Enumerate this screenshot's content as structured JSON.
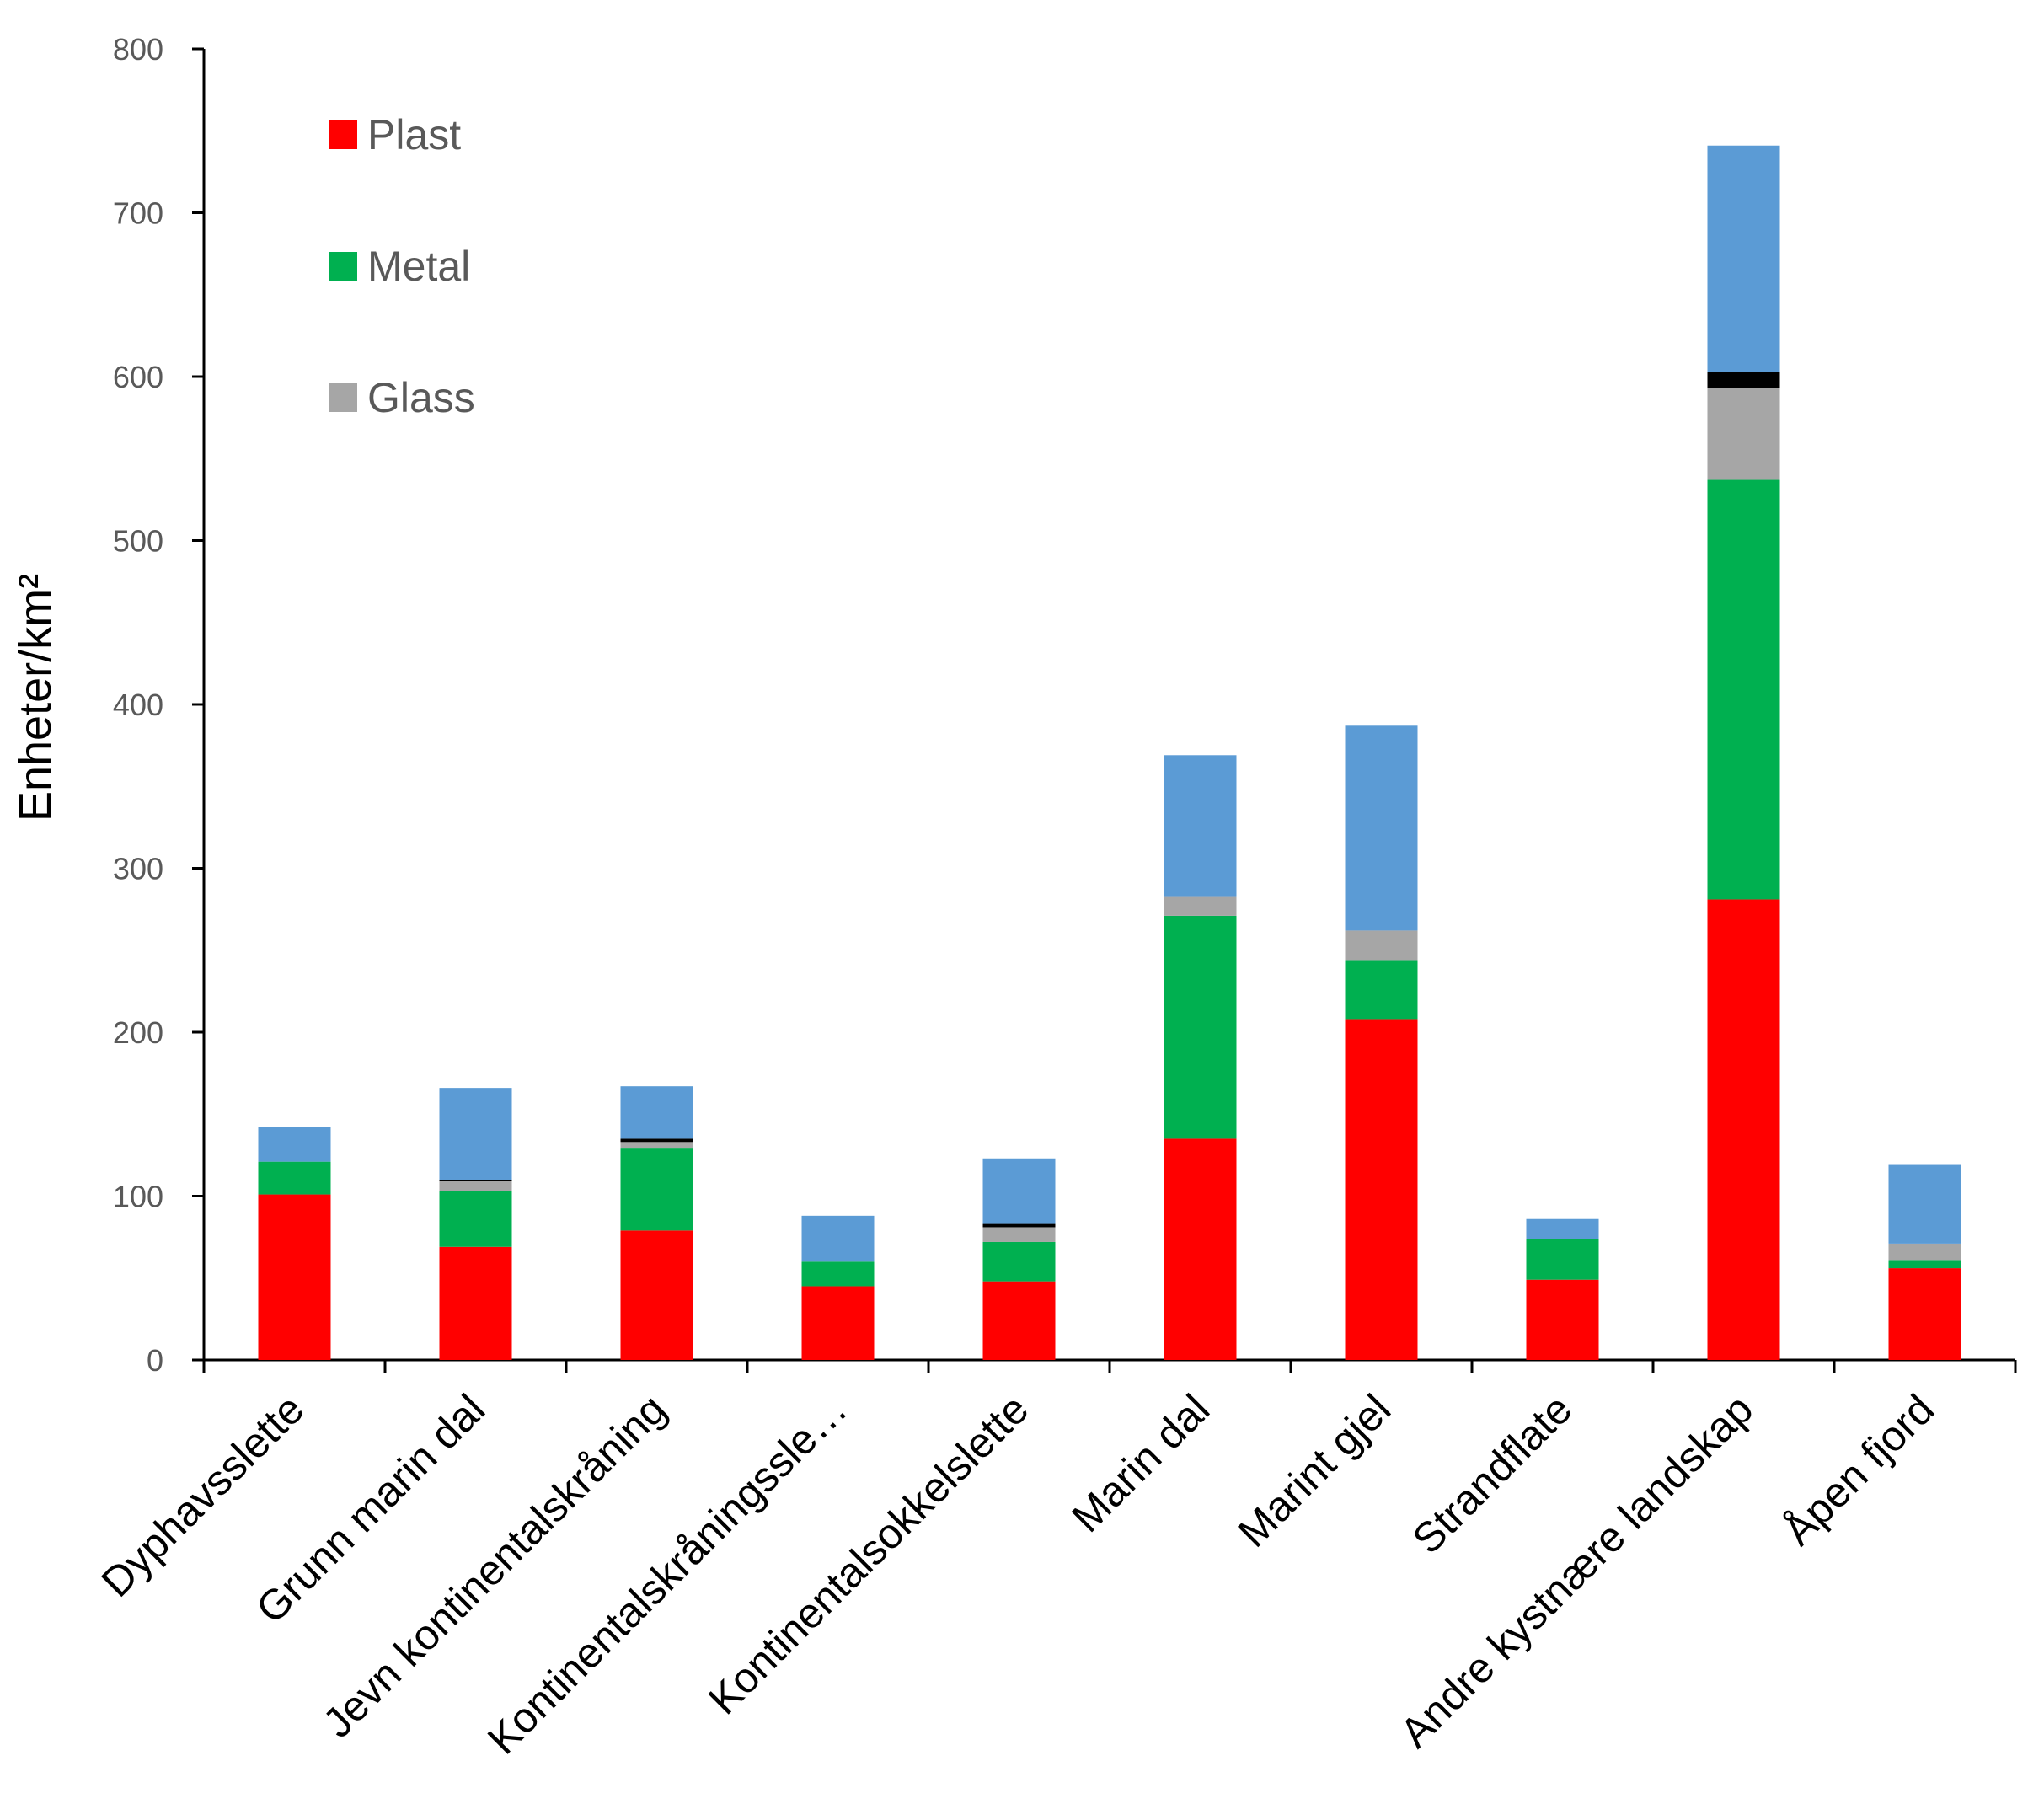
{
  "chart_data": {
    "type": "bar",
    "stacked": true,
    "title": "",
    "xlabel": "",
    "ylabel": "Enheter/km²",
    "ylim": [
      0,
      800
    ],
    "yticks": [
      0,
      100,
      200,
      300,
      400,
      500,
      600,
      700,
      800
    ],
    "grid": false,
    "legend_position": "top-left",
    "categories": [
      "Dyphavsslette",
      "Grunn marin dal",
      "Jevn kontinentalskråning",
      "Kontinentalskråningssle…",
      "Kontinentalsokkelslette",
      "Marin dal",
      "Marint gjel",
      "Strandflate",
      "Andre kystnære landskap",
      "Åpen fjord"
    ],
    "series": [
      {
        "name": "Plast",
        "color": "#FF0000",
        "in_legend": true,
        "values": [
          101,
          69,
          79,
          45,
          48,
          135,
          208,
          49,
          281,
          56
        ]
      },
      {
        "name": "Metal",
        "color": "#00B050",
        "in_legend": true,
        "values": [
          20,
          34,
          50,
          15,
          24,
          136,
          36,
          25,
          256,
          5
        ]
      },
      {
        "name": "Glass",
        "color": "#A6A6A6",
        "in_legend": true,
        "values": [
          0,
          6,
          4,
          0,
          9,
          12,
          18,
          0,
          56,
          10
        ]
      },
      {
        "name": "",
        "color": "#000000",
        "in_legend": false,
        "values": [
          0,
          1,
          2,
          0,
          2,
          0,
          0,
          0,
          10,
          0
        ]
      },
      {
        "name": "",
        "color": "#5B9BD5",
        "in_legend": false,
        "values": [
          21,
          56,
          32,
          28,
          40,
          86,
          125,
          12,
          138,
          48
        ]
      }
    ]
  }
}
